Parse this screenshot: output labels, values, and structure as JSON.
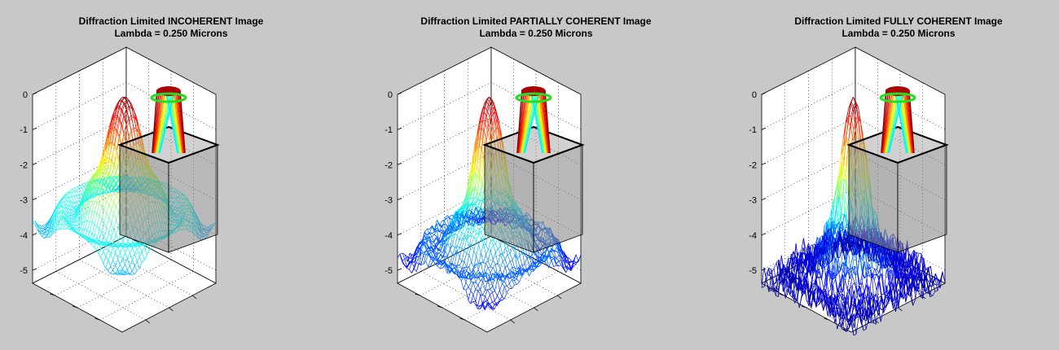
{
  "figure": {
    "background_color": "#c8c8c8",
    "axes_background_color": "#ffffff",
    "grid": true,
    "grid_style": "dotted",
    "colormap": "jet",
    "box_color": "#808080",
    "ring_color": "#22dd22"
  },
  "chart_data": [
    {
      "type": "surface",
      "title_line1": "Diffraction Limited INCOHERENT Image",
      "title_line2": "Lambda = 0.250 Microns",
      "zticks": [
        0,
        -1,
        -2,
        -3,
        -4,
        -5
      ],
      "zticklabels": [
        "0",
        "-1",
        "-2",
        "-3",
        "-4",
        "-5"
      ],
      "zlim": [
        -5.5,
        0
      ],
      "background_level": -4.2,
      "background_ripple": 0.45,
      "peak_width": 0.28,
      "skirt_width": 1.0,
      "noise": 0.05
    },
    {
      "type": "surface",
      "title_line1": "Diffraction Limited PARTIALLY COHERENT Image",
      "title_line2": "Lambda = 0.250 Microns",
      "zticks": [
        0,
        -1,
        -2,
        -3,
        -4,
        -5
      ],
      "zticklabels": [
        "0",
        "-1",
        "-2",
        "-3",
        "-4",
        "-5"
      ],
      "zlim": [
        -5.5,
        0
      ],
      "background_level": -4.9,
      "background_ripple": 0.35,
      "peak_width": 0.22,
      "skirt_width": 0.7,
      "noise": 0.25
    },
    {
      "type": "surface",
      "title_line1": "Diffraction Limited FULLY COHERENT Image",
      "title_line2": "Lambda = 0.250 Microns",
      "zticks": [
        0,
        -1,
        -2,
        -3,
        -4,
        -5
      ],
      "zticklabels": [
        "0",
        "-1",
        "-2",
        "-3",
        "-4",
        "-5"
      ],
      "zlim": [
        -5.5,
        0
      ],
      "background_level": -5.3,
      "background_ripple": 0.2,
      "peak_width": 0.18,
      "skirt_width": 0.45,
      "noise": 0.9
    }
  ]
}
